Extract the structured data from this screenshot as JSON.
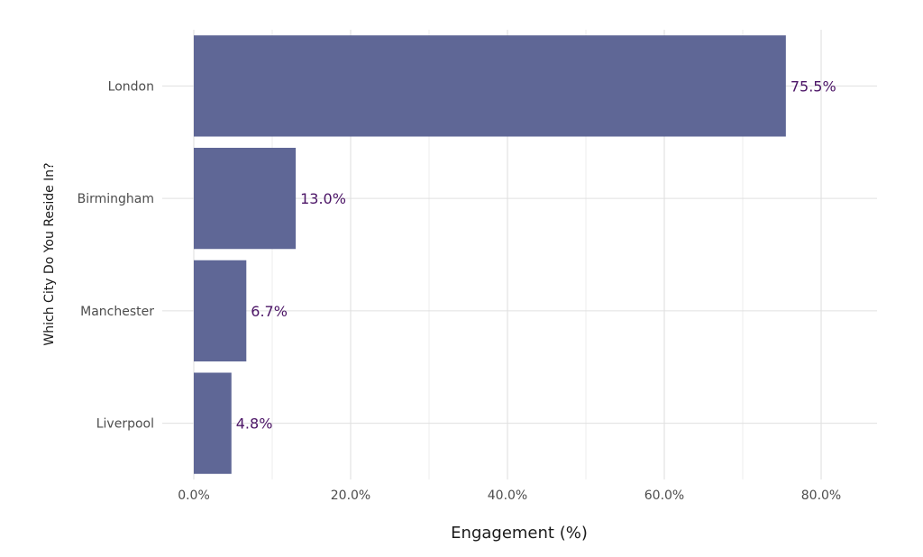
{
  "chart_data": {
    "type": "bar",
    "orientation": "horizontal",
    "categories": [
      "London",
      "Birmingham",
      "Manchester",
      "Liverpool"
    ],
    "values": [
      75.5,
      13.0,
      6.7,
      4.8
    ],
    "data_labels": [
      "75.5%",
      "13.0%",
      "6.7%",
      "4.8%"
    ],
    "xlabel": "Engagement (%)",
    "ylabel": "Which City Do You Reside In?",
    "xlim": [
      0,
      87.5
    ],
    "x_ticks": [
      0,
      20,
      40,
      60,
      80
    ],
    "x_tick_labels": [
      "0.0%",
      "20.0%",
      "40.0%",
      "60.0%",
      "80.0%"
    ],
    "grid": true,
    "legend": false,
    "colors": {
      "bar": "#5f6796",
      "label": "#4b1466",
      "grid": "#e0e0e0"
    }
  }
}
